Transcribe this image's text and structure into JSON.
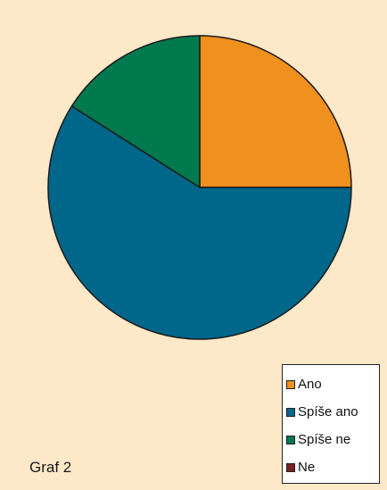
{
  "chart_data": {
    "type": "pie",
    "title": "",
    "categories": [
      "Ano",
      "Spíše ano",
      "Spíše ne",
      "Ne"
    ],
    "values": [
      25,
      59,
      16,
      0
    ],
    "colors": [
      "#f0901e",
      "#00668a",
      "#00794f",
      "#7a2020"
    ],
    "start_angle_deg": 0,
    "direction": "clockwise",
    "legend_position": "bottom-right",
    "caption": "Graf 2"
  },
  "colors": {
    "background": "#fde8c8",
    "outline": "#1a1a1a"
  }
}
